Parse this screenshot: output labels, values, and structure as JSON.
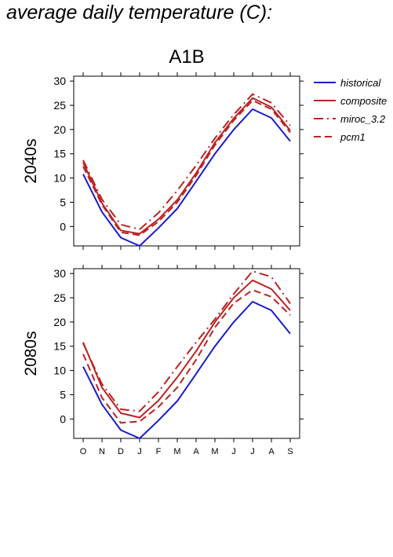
{
  "figure_title": "average daily temperature (C):",
  "scenario_title": "A1B",
  "colors": {
    "historical": "#1a1acc",
    "projection": "#bb2222"
  },
  "legend": [
    {
      "label": "historical",
      "color": "#1a1acc",
      "dash": "solid"
    },
    {
      "label": "composite",
      "color": "#bb2222",
      "dash": "solid"
    },
    {
      "label": "miroc_3.2",
      "color": "#bb2222",
      "dash": "dashdot"
    },
    {
      "label": "pcm1",
      "color": "#bb2222",
      "dash": "dashed"
    }
  ],
  "chart_data": [
    {
      "type": "line",
      "panel_label": "2040s",
      "categories": [
        "O",
        "N",
        "D",
        "J",
        "F",
        "M",
        "A",
        "M",
        "J",
        "J",
        "A",
        "S"
      ],
      "ylim": [
        -4,
        31
      ],
      "yticks": [
        0,
        5,
        10,
        15,
        20,
        25,
        30
      ],
      "grid": false,
      "legend_position": "right",
      "series": [
        {
          "name": "historical",
          "dash": "solid",
          "color": "#1a1acc",
          "values": [
            10.8,
            3.0,
            -2.3,
            -4.0,
            -0.3,
            3.7,
            9.3,
            15.0,
            20.0,
            24.2,
            22.4,
            17.6
          ]
        },
        {
          "name": "composite",
          "dash": "solid",
          "color": "#bb2222",
          "values": [
            13.2,
            4.8,
            -0.8,
            -1.5,
            1.5,
            5.5,
            11.0,
            17.3,
            22.3,
            26.5,
            24.6,
            19.8
          ]
        },
        {
          "name": "miroc_3.2",
          "dash": "dashdot",
          "color": "#bb2222",
          "values": [
            13.7,
            5.6,
            0.4,
            -0.6,
            2.8,
            7.4,
            12.6,
            18.2,
            23.1,
            27.3,
            25.5,
            20.8
          ]
        },
        {
          "name": "pcm1",
          "dash": "dashed",
          "color": "#bb2222",
          "values": [
            12.4,
            4.5,
            -1.2,
            -1.8,
            1.0,
            5.0,
            10.5,
            16.8,
            21.9,
            26.0,
            24.2,
            19.4
          ]
        }
      ]
    },
    {
      "type": "line",
      "panel_label": "2080s",
      "categories": [
        "O",
        "N",
        "D",
        "J",
        "F",
        "M",
        "A",
        "M",
        "J",
        "J",
        "A",
        "S"
      ],
      "ylim": [
        -4,
        31
      ],
      "yticks": [
        0,
        5,
        10,
        15,
        20,
        25,
        30
      ],
      "grid": false,
      "legend_position": "right",
      "series": [
        {
          "name": "historical",
          "dash": "solid",
          "color": "#1a1acc",
          "values": [
            10.8,
            3.0,
            -2.3,
            -4.0,
            -0.3,
            3.7,
            9.3,
            15.0,
            20.0,
            24.2,
            22.4,
            17.6
          ]
        },
        {
          "name": "composite",
          "dash": "solid",
          "color": "#bb2222",
          "values": [
            15.8,
            6.5,
            1.2,
            0.3,
            3.8,
            8.6,
            14.0,
            20.0,
            25.0,
            28.6,
            26.8,
            22.4
          ]
        },
        {
          "name": "miroc_3.2",
          "dash": "dashdot",
          "color": "#bb2222",
          "values": [
            15.6,
            7.2,
            2.0,
            1.6,
            5.6,
            10.8,
            15.8,
            20.6,
            25.8,
            30.5,
            29.3,
            23.8
          ]
        },
        {
          "name": "pcm1",
          "dash": "dashed",
          "color": "#bb2222",
          "values": [
            13.4,
            4.4,
            -0.8,
            -0.5,
            2.5,
            6.5,
            12.2,
            18.9,
            23.9,
            26.6,
            25.2,
            21.4
          ]
        }
      ]
    }
  ]
}
